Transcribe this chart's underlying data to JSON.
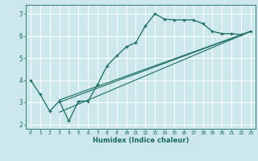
{
  "title": "",
  "xlabel": "Humidex (Indice chaleur)",
  "ylabel": "",
  "background_color": "#cce8ec",
  "line_color": "#1a6b60",
  "grid_color": "#ffffff",
  "xlim": [
    -0.5,
    23.5
  ],
  "ylim": [
    1.8,
    7.4
  ],
  "yticks": [
    2,
    3,
    4,
    5,
    6,
    7
  ],
  "xticks": [
    0,
    1,
    2,
    3,
    4,
    5,
    6,
    7,
    8,
    9,
    10,
    11,
    12,
    13,
    14,
    15,
    16,
    17,
    18,
    19,
    20,
    21,
    22,
    23
  ],
  "curve_x": [
    0,
    1,
    2,
    3,
    4,
    5,
    6,
    7,
    8,
    9,
    10,
    11,
    12,
    13,
    14,
    15,
    16,
    17,
    18,
    19,
    20,
    21,
    22,
    23
  ],
  "curve_y": [
    4.0,
    3.35,
    2.6,
    3.05,
    2.15,
    3.05,
    3.05,
    3.8,
    4.65,
    5.1,
    5.5,
    5.7,
    6.45,
    7.0,
    6.75,
    6.72,
    6.72,
    6.72,
    6.55,
    6.2,
    6.1,
    6.1,
    6.05,
    6.2
  ],
  "line1_x": [
    3,
    23
  ],
  "line1_y": [
    3.0,
    6.2
  ],
  "line2_x": [
    3,
    23
  ],
  "line2_y": [
    2.55,
    6.2
  ],
  "line3_x": [
    3,
    23
  ],
  "line3_y": [
    3.1,
    6.2
  ]
}
